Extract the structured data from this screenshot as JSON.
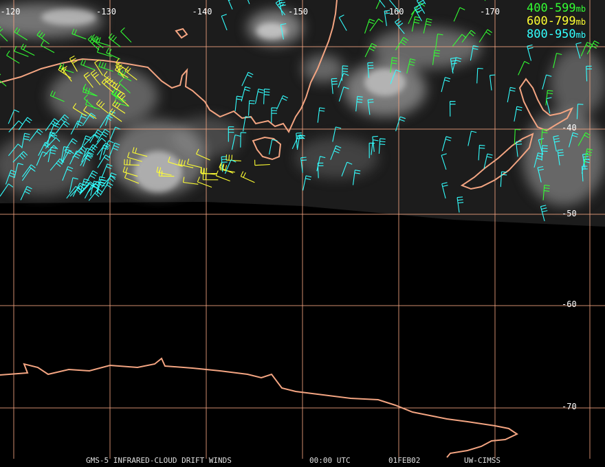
{
  "longitude_labels": [
    "-120",
    "-130",
    "-140",
    "-150",
    "-160",
    "-170"
  ],
  "latitude_labels": [
    "-40",
    "-50",
    "-60",
    "-70"
  ],
  "legend": [
    {
      "range": "400-599",
      "unit": "mb",
      "color": "#33ff33"
    },
    {
      "range": "600-799",
      "unit": "mb",
      "color": "#ffff33"
    },
    {
      "range": "800-950",
      "unit": "mb",
      "color": "#33ffff"
    }
  ],
  "footer": {
    "product": "GMS-5 INFRARED-CLOUD DRIFT WINDS",
    "time": "00:00 UTC",
    "date": "01FEB02",
    "source": "UW-CIMSS"
  }
}
